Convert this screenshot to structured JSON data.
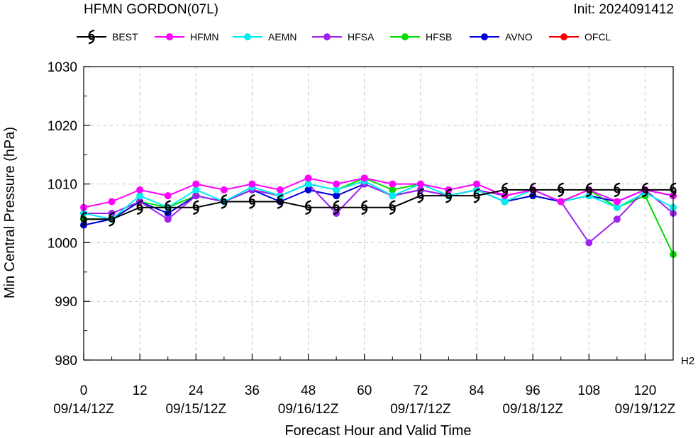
{
  "header": {
    "title": "HFMN GORDON(07L)",
    "init": "Init: 2024091412",
    "right_edge_label": "H2"
  },
  "chart_data": {
    "type": "line",
    "xlabel": "Forecast Hour and Valid Time",
    "ylabel": "Min Central Pressure (hPa)",
    "xlim": [
      0,
      126
    ],
    "ylim": [
      980,
      1030
    ],
    "grid": true,
    "legend_position": "top",
    "x_ticks": [
      0,
      12,
      24,
      36,
      48,
      60,
      72,
      84,
      96,
      108,
      120
    ],
    "x_tick_labels": [
      "0",
      "12",
      "24",
      "36",
      "48",
      "60",
      "72",
      "84",
      "96",
      "108",
      "120"
    ],
    "x_date_labels": [
      {
        "x": 0,
        "label": "09/14/12Z"
      },
      {
        "x": 24,
        "label": "09/15/12Z"
      },
      {
        "x": 48,
        "label": "09/16/12Z"
      },
      {
        "x": 72,
        "label": "09/17/12Z"
      },
      {
        "x": 96,
        "label": "09/18/12Z"
      },
      {
        "x": 120,
        "label": "09/19/12Z"
      }
    ],
    "y_ticks": [
      980,
      990,
      1000,
      1010,
      1020,
      1030
    ],
    "y_tick_labels": [
      "980",
      "990",
      "1000",
      "1010",
      "1020",
      "1030"
    ],
    "series": [
      {
        "name": "HFSB",
        "color": "#00dd00",
        "marker": "dot",
        "x": [
          0,
          6,
          12,
          18,
          24,
          30,
          36,
          42,
          48,
          54,
          60,
          66,
          72,
          78,
          84,
          90,
          96,
          102,
          108,
          114,
          120,
          126
        ],
        "y": [
          1004,
          1004,
          1007,
          1006,
          1008,
          1007,
          1009,
          1008,
          1010,
          1009,
          1011,
          1009,
          1010,
          1008,
          1009,
          1007,
          1008,
          1007,
          1009,
          1006,
          1008,
          998
        ]
      },
      {
        "name": "AVNO",
        "color": "#0000dd",
        "marker": "dot",
        "x": [
          0,
          6,
          12,
          18,
          24,
          30,
          36,
          42,
          48,
          54,
          60,
          66,
          72,
          78,
          84,
          90,
          96,
          102,
          108,
          114,
          120,
          126
        ],
        "y": [
          1003,
          1004,
          1007,
          1005,
          1008,
          1007,
          1009,
          1007,
          1009,
          1008,
          1010,
          1008,
          1009,
          1008,
          1009,
          1007,
          1008,
          1007,
          1008,
          1007,
          1009,
          1008
        ]
      },
      {
        "name": "HFSA",
        "color": "#a020f0",
        "marker": "dot",
        "x": [
          0,
          6,
          12,
          18,
          24,
          30,
          36,
          42,
          48,
          54,
          60,
          66,
          72,
          78,
          84,
          90,
          96,
          102,
          108,
          114,
          120,
          126
        ],
        "y": [
          1005,
          1005,
          1007,
          1004,
          1008,
          1007,
          1009,
          1008,
          1010,
          1005,
          1010,
          1008,
          1009,
          1008,
          1009,
          1008,
          1009,
          1007,
          1000,
          1004,
          1009,
          1005
        ]
      },
      {
        "name": "AEMN",
        "color": "#00eeee",
        "marker": "dot",
        "x": [
          0,
          6,
          12,
          18,
          24,
          30,
          36,
          42,
          48,
          54,
          60,
          66,
          72,
          78,
          84,
          90,
          96,
          102,
          108,
          114,
          120,
          126
        ],
        "y": [
          1005,
          1004,
          1008,
          1006,
          1009,
          1007,
          1009.5,
          1008,
          1010,
          1009,
          1010.5,
          1008,
          1010,
          1008,
          1009,
          1007,
          1009,
          1007,
          1008,
          1006,
          1008.5,
          1006
        ]
      },
      {
        "name": "HFMN",
        "color": "#ff00ff",
        "marker": "dot",
        "x": [
          0,
          6,
          12,
          18,
          24,
          30,
          36,
          42,
          48,
          54,
          60,
          66,
          72,
          78,
          84,
          90,
          96,
          102,
          108,
          114,
          120,
          126
        ],
        "y": [
          1006,
          1007,
          1009,
          1008,
          1010,
          1009,
          1010,
          1009,
          1011,
          1010,
          1011,
          1010,
          1010,
          1009,
          1010,
          1008,
          1009,
          1007,
          1009,
          1007,
          1009,
          1008
        ]
      },
      {
        "name": "BEST",
        "color": "#000000",
        "marker": "hurricane",
        "x": [
          0,
          6,
          12,
          18,
          24,
          30,
          36,
          42,
          48,
          54,
          60,
          66,
          72,
          78,
          84,
          90,
          96,
          102,
          108,
          114,
          120,
          126
        ],
        "y": [
          1004,
          1004,
          1006,
          1006,
          1006,
          1007,
          1007,
          1007,
          1006,
          1006,
          1006,
          1006,
          1008,
          1008,
          1008,
          1009,
          1009,
          1009,
          1009,
          1009,
          1009,
          1009
        ]
      }
    ],
    "legend": [
      {
        "name": "BEST",
        "color": "#000000",
        "marker": "hurricane"
      },
      {
        "name": "HFMN",
        "color": "#ff00ff",
        "marker": "dot"
      },
      {
        "name": "AEMN",
        "color": "#00eeee",
        "marker": "dot"
      },
      {
        "name": "HFSA",
        "color": "#a020f0",
        "marker": "dot"
      },
      {
        "name": "HFSB",
        "color": "#00dd00",
        "marker": "dot"
      },
      {
        "name": "AVNO",
        "color": "#0000dd",
        "marker": "dot"
      },
      {
        "name": "OFCL",
        "color": "#ff0000",
        "marker": "dot"
      }
    ]
  }
}
